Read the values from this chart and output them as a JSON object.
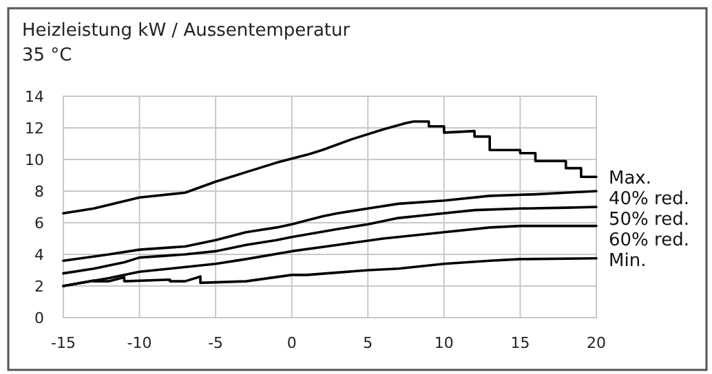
{
  "chart_data": {
    "type": "line",
    "title": "Heizleistung kW / Aussentemperatur",
    "subtitle": "35 °C",
    "xlim": [
      -15,
      20
    ],
    "xticks": [
      -15,
      -10,
      -5,
      0,
      5,
      10,
      15,
      20
    ],
    "ylim": [
      0,
      14
    ],
    "yticks": [
      0,
      2,
      4,
      6,
      8,
      10,
      12,
      14
    ],
    "grid": true,
    "line_style": "solid",
    "marker": "none",
    "series": [
      {
        "name": "Max.",
        "color": "#000000",
        "x": [
          -15,
          -13,
          -10,
          -7,
          -5,
          -3,
          -1,
          1,
          2,
          4,
          6,
          7.5,
          8,
          9,
          9,
          10,
          10,
          12,
          12,
          13,
          13,
          15,
          15,
          16,
          16,
          18,
          18,
          19,
          19,
          20
        ],
        "values": [
          6.6,
          6.9,
          7.6,
          7.9,
          8.6,
          9.2,
          9.8,
          10.3,
          10.6,
          11.3,
          11.9,
          12.3,
          12.4,
          12.4,
          12.1,
          12.1,
          11.7,
          11.8,
          11.45,
          11.45,
          10.6,
          10.6,
          10.4,
          10.4,
          9.9,
          9.9,
          9.45,
          9.45,
          8.9,
          8.9
        ]
      },
      {
        "name": "40% red.",
        "color": "#000000",
        "x": [
          -15,
          -12,
          -10,
          -7,
          -5,
          -3,
          -1,
          0,
          2,
          3,
          5,
          7,
          10,
          13,
          16,
          18,
          20
        ],
        "values": [
          3.6,
          4.0,
          4.3,
          4.5,
          4.9,
          5.4,
          5.7,
          5.9,
          6.4,
          6.6,
          6.9,
          7.2,
          7.4,
          7.7,
          7.8,
          7.9,
          8.0
        ]
      },
      {
        "name": "50% red.",
        "color": "#000000",
        "x": [
          -15,
          -13,
          -11,
          -10,
          -7,
          -5,
          -3,
          -1,
          0,
          3,
          5,
          7,
          9,
          12,
          15,
          18,
          20
        ],
        "values": [
          2.8,
          3.1,
          3.5,
          3.8,
          4.0,
          4.2,
          4.6,
          4.9,
          5.1,
          5.6,
          5.9,
          6.3,
          6.5,
          6.8,
          6.9,
          6.95,
          7.0
        ]
      },
      {
        "name": "60% red.",
        "color": "#000000",
        "x": [
          -15,
          -12,
          -10,
          -8,
          -5,
          -3,
          0,
          3,
          6,
          10,
          13,
          15,
          18,
          20
        ],
        "values": [
          2.0,
          2.5,
          2.9,
          3.1,
          3.4,
          3.7,
          4.2,
          4.6,
          5.0,
          5.4,
          5.7,
          5.8,
          5.8,
          5.8
        ]
      },
      {
        "name": "Min.",
        "color": "#000000",
        "x": [
          -15,
          -13,
          -13,
          -12,
          -11,
          -11,
          -8,
          -8,
          -7,
          -6,
          -6,
          -3,
          0,
          1,
          5,
          7,
          10,
          13,
          15,
          20
        ],
        "values": [
          2.0,
          2.35,
          2.3,
          2.3,
          2.55,
          2.3,
          2.4,
          2.3,
          2.3,
          2.6,
          2.2,
          2.3,
          2.7,
          2.7,
          3.0,
          3.1,
          3.4,
          3.6,
          3.7,
          3.75
        ]
      }
    ]
  }
}
